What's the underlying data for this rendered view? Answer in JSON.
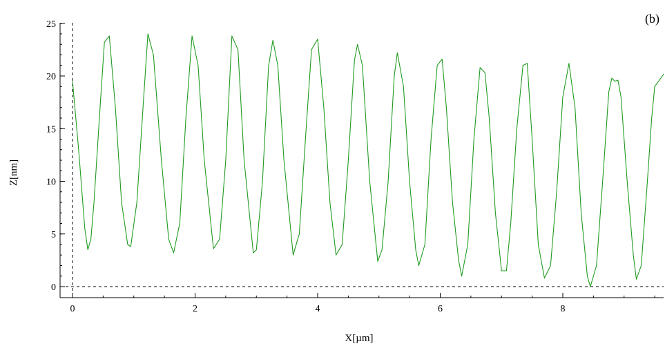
{
  "chart_data": {
    "type": "line",
    "title": "",
    "panel_label": "(b)",
    "xlabel": "X[µm]",
    "ylabel": "Z[nm]",
    "xlim": [
      0,
      9.65
    ],
    "ylim": [
      0,
      25
    ],
    "x_ticks": [
      0,
      2,
      4,
      6,
      8
    ],
    "x_tick_labels": [
      "0",
      "2",
      "4",
      "6",
      "8"
    ],
    "y_ticks": [
      0,
      5,
      10,
      15,
      20,
      25
    ],
    "y_tick_labels": [
      "0",
      "5",
      "10",
      "15",
      "20",
      "25"
    ],
    "x_minor_step": 0.5,
    "y_minor_step": 1,
    "grid": false,
    "reference_lines": {
      "x": 0,
      "y": 0,
      "style": "dashed"
    },
    "colors": {
      "line": "#1f9a1f",
      "axes": "#000000"
    },
    "series": [
      {
        "points": [
          [
            0.0,
            19.5
          ],
          [
            0.1,
            13.0
          ],
          [
            0.2,
            5.5
          ],
          [
            0.25,
            3.5
          ],
          [
            0.3,
            4.5
          ],
          [
            0.35,
            8.0
          ],
          [
            0.45,
            17.0
          ],
          [
            0.52,
            23.2
          ],
          [
            0.6,
            23.8
          ],
          [
            0.7,
            17.0
          ],
          [
            0.8,
            8.0
          ],
          [
            0.9,
            4.0
          ],
          [
            0.95,
            3.8
          ],
          [
            1.05,
            8.0
          ],
          [
            1.15,
            17.0
          ],
          [
            1.23,
            24.0
          ],
          [
            1.32,
            22.0
          ],
          [
            1.45,
            12.0
          ],
          [
            1.57,
            4.5
          ],
          [
            1.65,
            3.2
          ],
          [
            1.75,
            6.0
          ],
          [
            1.85,
            16.0
          ],
          [
            1.95,
            23.8
          ],
          [
            2.05,
            21.0
          ],
          [
            2.15,
            12.0
          ],
          [
            2.3,
            3.6
          ],
          [
            2.4,
            4.5
          ],
          [
            2.5,
            12.0
          ],
          [
            2.6,
            23.8
          ],
          [
            2.7,
            22.5
          ],
          [
            2.8,
            12.0
          ],
          [
            2.95,
            3.2
          ],
          [
            3.0,
            3.5
          ],
          [
            3.1,
            10.0
          ],
          [
            3.2,
            21.0
          ],
          [
            3.27,
            23.4
          ],
          [
            3.35,
            21.0
          ],
          [
            3.45,
            12.0
          ],
          [
            3.6,
            3.0
          ],
          [
            3.7,
            5.0
          ],
          [
            3.8,
            14.0
          ],
          [
            3.9,
            22.5
          ],
          [
            4.0,
            23.5
          ],
          [
            4.1,
            17.0
          ],
          [
            4.2,
            8.0
          ],
          [
            4.3,
            3.0
          ],
          [
            4.4,
            4.0
          ],
          [
            4.5,
            12.0
          ],
          [
            4.6,
            21.5
          ],
          [
            4.65,
            23.0
          ],
          [
            4.73,
            21.0
          ],
          [
            4.85,
            10.0
          ],
          [
            4.98,
            2.4
          ],
          [
            5.05,
            3.5
          ],
          [
            5.15,
            10.0
          ],
          [
            5.25,
            20.0
          ],
          [
            5.3,
            22.2
          ],
          [
            5.4,
            19.0
          ],
          [
            5.5,
            10.0
          ],
          [
            5.6,
            3.5
          ],
          [
            5.65,
            2.0
          ],
          [
            5.75,
            4.0
          ],
          [
            5.85,
            14.0
          ],
          [
            5.95,
            21.0
          ],
          [
            6.03,
            21.6
          ],
          [
            6.1,
            17.0
          ],
          [
            6.2,
            8.0
          ],
          [
            6.3,
            2.5
          ],
          [
            6.35,
            1.0
          ],
          [
            6.45,
            4.0
          ],
          [
            6.55,
            14.0
          ],
          [
            6.65,
            20.8
          ],
          [
            6.73,
            20.3
          ],
          [
            6.8,
            16.0
          ],
          [
            6.9,
            7.0
          ],
          [
            7.0,
            1.5
          ],
          [
            7.08,
            1.5
          ],
          [
            7.15,
            6.0
          ],
          [
            7.25,
            15.0
          ],
          [
            7.35,
            21.0
          ],
          [
            7.42,
            21.2
          ],
          [
            7.5,
            14.0
          ],
          [
            7.6,
            4.0
          ],
          [
            7.7,
            0.8
          ],
          [
            7.8,
            2.0
          ],
          [
            7.9,
            9.0
          ],
          [
            8.0,
            18.0
          ],
          [
            8.1,
            21.2
          ],
          [
            8.2,
            17.0
          ],
          [
            8.3,
            7.0
          ],
          [
            8.4,
            1.0
          ],
          [
            8.45,
            0.0
          ],
          [
            8.55,
            2.0
          ],
          [
            8.65,
            10.0
          ],
          [
            8.75,
            18.5
          ],
          [
            8.8,
            19.8
          ],
          [
            8.85,
            19.5
          ],
          [
            8.9,
            19.6
          ],
          [
            8.95,
            18.0
          ],
          [
            9.05,
            10.0
          ],
          [
            9.15,
            3.0
          ],
          [
            9.2,
            0.7
          ],
          [
            9.28,
            2.0
          ],
          [
            9.38,
            10.0
          ],
          [
            9.45,
            16.0
          ],
          [
            9.5,
            19.0
          ],
          [
            9.6,
            19.8
          ],
          [
            9.65,
            20.2
          ]
        ]
      }
    ]
  }
}
